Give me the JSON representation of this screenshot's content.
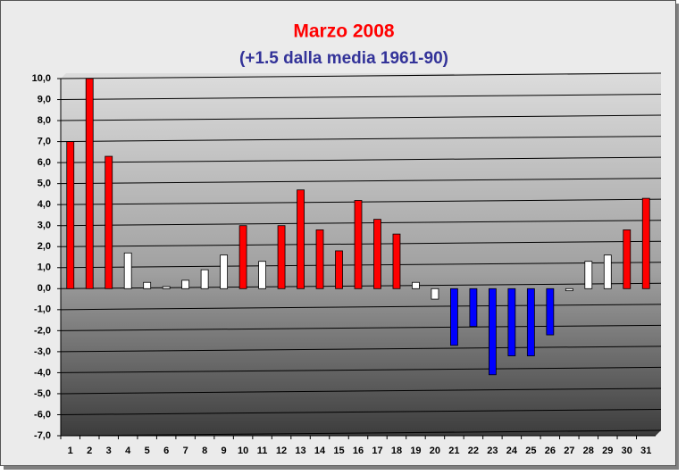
{
  "chart_data": {
    "type": "bar",
    "title": "Marzo 2008",
    "subtitle": "(+1.5 dalla media 1961-90)",
    "categories": [
      "1",
      "2",
      "3",
      "4",
      "5",
      "6",
      "7",
      "8",
      "9",
      "10",
      "11",
      "12",
      "13",
      "14",
      "15",
      "16",
      "17",
      "18",
      "19",
      "20",
      "21",
      "22",
      "23",
      "24",
      "25",
      "26",
      "27",
      "28",
      "29",
      "30",
      "31"
    ],
    "values": [
      7.0,
      10.0,
      6.3,
      1.7,
      0.3,
      0.1,
      0.4,
      0.9,
      1.6,
      3.0,
      1.3,
      3.0,
      4.7,
      2.8,
      1.8,
      4.2,
      3.3,
      2.6,
      0.3,
      -0.5,
      -2.7,
      -1.8,
      -4.1,
      -3.2,
      -3.2,
      -2.2,
      -0.1,
      1.3,
      1.6,
      2.8,
      4.3
    ],
    "colors": [
      "#ff0000",
      "#ff0000",
      "#ff0000",
      "#ffffff",
      "#ffffff",
      "#ffffff",
      "#ffffff",
      "#ffffff",
      "#ffffff",
      "#ff0000",
      "#ffffff",
      "#ff0000",
      "#ff0000",
      "#ff0000",
      "#ff0000",
      "#ff0000",
      "#ff0000",
      "#ff0000",
      "#ffffff",
      "#ffffff",
      "#0000ff",
      "#0000ff",
      "#0000ff",
      "#0000ff",
      "#0000ff",
      "#0000ff",
      "#ffffff",
      "#ffffff",
      "#ffffff",
      "#ff0000",
      "#ff0000"
    ],
    "ylim": [
      -7,
      10
    ],
    "yticks": [
      {
        "value": -7,
        "label": "-7,0"
      },
      {
        "value": -6,
        "label": "-6,0"
      },
      {
        "value": -5,
        "label": "-5,0"
      },
      {
        "value": -4,
        "label": "-4,0"
      },
      {
        "value": -3,
        "label": "-3,0"
      },
      {
        "value": -2,
        "label": "-2,0"
      },
      {
        "value": -1,
        "label": "-1,0"
      },
      {
        "value": 0,
        "label": "0,0"
      },
      {
        "value": 1,
        "label": "1,0"
      },
      {
        "value": 2,
        "label": "2,0"
      },
      {
        "value": 3,
        "label": "3,0"
      },
      {
        "value": 4,
        "label": "4,0"
      },
      {
        "value": 5,
        "label": "5,0"
      },
      {
        "value": 6,
        "label": "6,0"
      },
      {
        "value": 7,
        "label": "7,0"
      },
      {
        "value": 8,
        "label": "8,0"
      },
      {
        "value": 9,
        "label": "9,0"
      },
      {
        "value": 10,
        "label": "10,0"
      }
    ],
    "grid": true
  }
}
